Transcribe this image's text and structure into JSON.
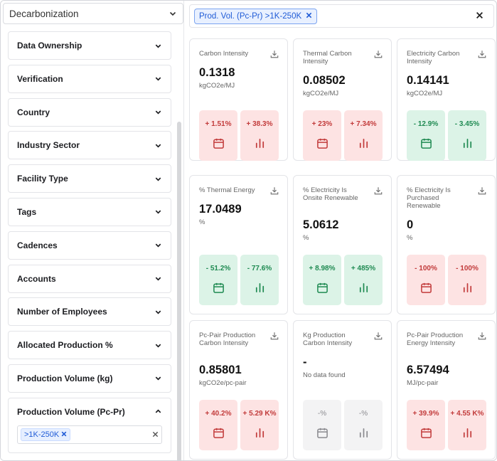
{
  "header": {
    "selector_value": "Decarbonization",
    "active_filter_chip": "Prod. Vol. (Pc-Pr) >1K-250K"
  },
  "filters": [
    "Data Ownership",
    "Verification",
    "Country",
    "Industry Sector",
    "Facility Type",
    "Tags",
    "Cadences",
    "Accounts",
    "Number of Employees",
    "Allocated Production %",
    "Production Volume (kg)"
  ],
  "open_filter": {
    "label": "Production Volume (Pc-Pr)",
    "selected_chip": ">1K-250K"
  },
  "cards": [
    {
      "title": "Carbon Intensity",
      "value": "0.1318",
      "unit": "kgCO2e/MJ",
      "period_change": "+ 1.51%",
      "trend_change": "+ 38.3%",
      "status": "red"
    },
    {
      "title": "Thermal Carbon Intensity",
      "value": "0.08502",
      "unit": "kgCO2e/MJ",
      "period_change": "+ 23%",
      "trend_change": "+ 7.34%",
      "status": "red"
    },
    {
      "title": "Electricity Carbon Intensity",
      "value": "0.14141",
      "unit": "kgCO2e/MJ",
      "period_change": "- 12.9%",
      "trend_change": "- 3.45%",
      "status": "green"
    },
    {
      "title": "% Thermal Energy",
      "value": "17.0489",
      "unit": "%",
      "period_change": "- 51.2%",
      "trend_change": "- 77.6%",
      "status": "green"
    },
    {
      "title": "% Electricity Is Onsite Renewable",
      "value": "5.0612",
      "unit": "%",
      "period_change": "+ 8.98%",
      "trend_change": "+ 485%",
      "status": "green"
    },
    {
      "title": "% Electricity Is Purchased Renewable",
      "value": "0",
      "unit": "%",
      "period_change": "- 100%",
      "trend_change": "- 100%",
      "status": "red"
    },
    {
      "title": "Pc-Pair Production Carbon Intensity",
      "value": "0.85801",
      "unit": "kgCO2e/pc-pair",
      "period_change": "+ 40.2%",
      "trend_change": "+ 5.29 K%",
      "status": "red"
    },
    {
      "title": "Kg Production Carbon Intensity",
      "value": "-",
      "unit": "",
      "no_data_text": "No data found",
      "period_change": "-%",
      "trend_change": "-%",
      "status": "gray"
    },
    {
      "title": "Pc-Pair Production Energy Intensity",
      "value": "6.57494",
      "unit": "MJ/pc-pair",
      "period_change": "+ 39.9%",
      "trend_change": "+ 4.55 K%",
      "status": "red"
    }
  ],
  "colors": {
    "red_bg": "#fde3e3",
    "red_text": "#c23b3b",
    "green_bg": "#dcf3e7",
    "green_text": "#1f8a52",
    "chip_blue": "#1f5bd6"
  }
}
